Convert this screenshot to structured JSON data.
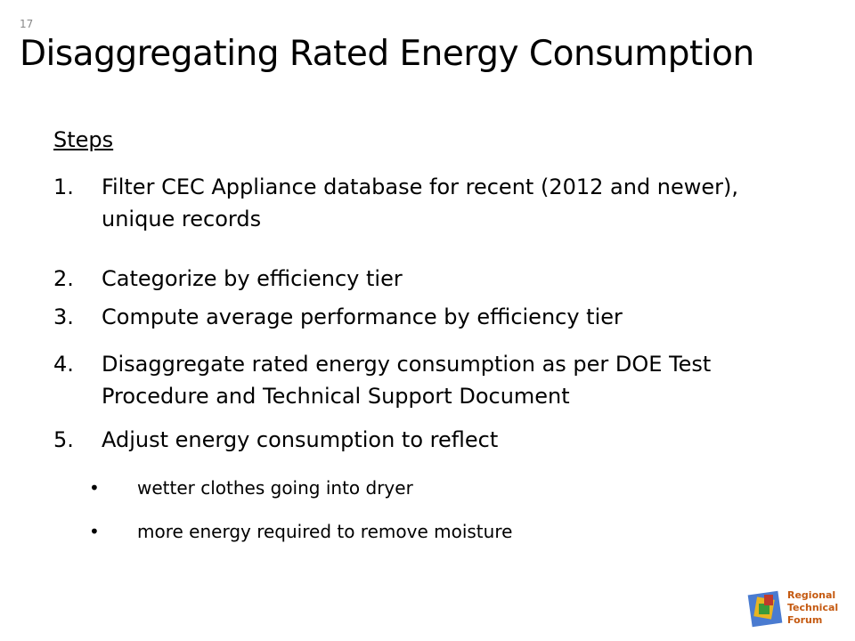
{
  "slide_number": "17",
  "title": "Disaggregating Rated Energy Consumption",
  "heading": "Steps",
  "steps": [
    {
      "number": "1.",
      "text": "Filter CEC Appliance database for recent (2012 and newer), unique records"
    },
    {
      "number": "2.",
      "text": "Categorize by efficiency tier"
    },
    {
      "number": "3.",
      "text": "Compute average performance by efficiency tier"
    },
    {
      "number": "4.",
      "text": "Disaggregate rated energy consumption as per DOE Test Procedure and Technical Support Document"
    },
    {
      "number": "5.",
      "text": "Adjust energy consumption to reflect"
    }
  ],
  "bullets": [
    "wetter clothes going into dryer",
    "more energy required to remove moisture"
  ],
  "logo": {
    "lines": [
      "Regional",
      "Technical",
      "Forum"
    ]
  }
}
